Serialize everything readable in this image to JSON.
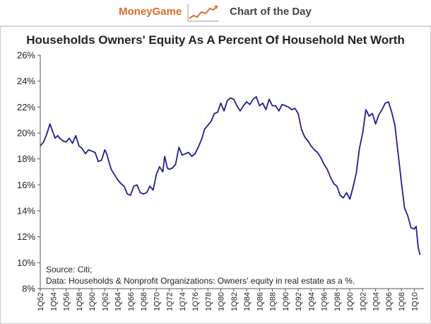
{
  "banner": {
    "brand": "MoneyGame",
    "title": "Chart of the Day",
    "brand_color": "#e06a2c",
    "icon": "rising-line-chart-icon"
  },
  "chart_data": {
    "type": "line",
    "title": "Households Owners' Equity As A Percent Of Household Net Worth",
    "xlabel": "",
    "ylabel": "",
    "ylim": [
      8,
      26
    ],
    "yticks": [
      "8%",
      "10%",
      "12%",
      "14%",
      "16%",
      "18%",
      "20%",
      "22%",
      "24%",
      "26%"
    ],
    "xticks": [
      "1Q52",
      "1Q54",
      "1Q56",
      "1Q58",
      "1Q60",
      "1Q62",
      "1Q64",
      "1Q66",
      "1Q68",
      "1Q70",
      "1Q72",
      "1Q74",
      "1Q76",
      "1Q78",
      "1Q80",
      "1Q82",
      "1Q84",
      "1Q86",
      "1Q88",
      "1Q90",
      "1Q92",
      "1Q94",
      "1Q96",
      "1Q98",
      "1Q00",
      "1Q02",
      "1Q04",
      "1Q06",
      "1Q08",
      "1Q10"
    ],
    "grid": false,
    "line_color": "#1f1f8f",
    "series": [
      {
        "name": "",
        "x": [
          1952,
          1952.5,
          1953,
          1953.5,
          1954,
          1954.3,
          1954.7,
          1955,
          1955.5,
          1956,
          1956.5,
          1957,
          1957.5,
          1958,
          1958.5,
          1959,
          1959.5,
          1960,
          1960.5,
          1961,
          1961.5,
          1962,
          1962.3,
          1962.7,
          1963,
          1963.5,
          1964,
          1964.5,
          1965,
          1965.5,
          1966,
          1966.5,
          1967,
          1967.5,
          1968,
          1968.5,
          1969,
          1969.5,
          1970,
          1970.5,
          1971,
          1971.3,
          1971.7,
          1972,
          1972.5,
          1973,
          1973.5,
          1974,
          1974.5,
          1975,
          1975.5,
          1976,
          1976.5,
          1977,
          1977.5,
          1978,
          1978.5,
          1979,
          1979.5,
          1980,
          1980.5,
          1981,
          1981.5,
          1982,
          1982.5,
          1983,
          1983.5,
          1984,
          1984.5,
          1985,
          1985.5,
          1986,
          1986.5,
          1987,
          1987.5,
          1988,
          1988.5,
          1989,
          1989.5,
          1990,
          1990.5,
          1991,
          1991.5,
          1992,
          1992.5,
          1993,
          1993.5,
          1994,
          1994.5,
          1995,
          1995.5,
          1996,
          1996.5,
          1997,
          1997.5,
          1998,
          1998.5,
          1999,
          1999.5,
          2000,
          2000.5,
          2001,
          2001.5,
          2002,
          2002.5,
          2003,
          2003.5,
          2004,
          2004.5,
          2005,
          2005.5,
          2006,
          2006.5,
          2007,
          2007.5,
          2008,
          2008.5,
          2009,
          2009.5,
          2010,
          2010.3,
          2010.6,
          2010.9
        ],
        "y": [
          19.0,
          19.3,
          19.9,
          20.7,
          20.0,
          19.6,
          19.8,
          19.6,
          19.4,
          19.3,
          19.6,
          19.2,
          19.8,
          19.0,
          18.8,
          18.4,
          18.7,
          18.6,
          18.5,
          17.8,
          17.9,
          18.7,
          18.4,
          17.7,
          17.2,
          16.8,
          16.4,
          16.1,
          15.9,
          15.3,
          15.2,
          15.9,
          16.0,
          15.4,
          15.3,
          15.4,
          15.9,
          15.6,
          16.8,
          17.4,
          17.0,
          18.2,
          17.3,
          17.2,
          17.3,
          17.6,
          18.9,
          18.3,
          18.4,
          18.5,
          18.2,
          18.4,
          18.9,
          19.5,
          20.3,
          20.6,
          20.9,
          21.5,
          21.6,
          22.3,
          21.7,
          22.5,
          22.7,
          22.6,
          22.1,
          21.7,
          22.1,
          22.4,
          22.2,
          22.6,
          22.8,
          22.1,
          22.3,
          21.8,
          22.6,
          22.1,
          22.1,
          21.7,
          22.2,
          22.1,
          22.0,
          21.8,
          21.9,
          21.5,
          20.3,
          19.7,
          19.4,
          19.0,
          18.7,
          18.5,
          18.1,
          17.6,
          17.2,
          16.6,
          16.1,
          15.9,
          15.2,
          15.0,
          15.4,
          14.9,
          15.8,
          16.9,
          18.8,
          20.0,
          21.8,
          21.3,
          21.5,
          20.7,
          21.4,
          21.8,
          22.3,
          22.4,
          21.6,
          20.6,
          18.4,
          16.2,
          14.2,
          13.6,
          12.7,
          12.6,
          12.8,
          11.2,
          10.6
        ]
      }
    ],
    "annotations": [
      "Source: Citi;",
      "Data: Households & Nonprofit Organizations: Owners' equity in real estate as a %."
    ]
  }
}
